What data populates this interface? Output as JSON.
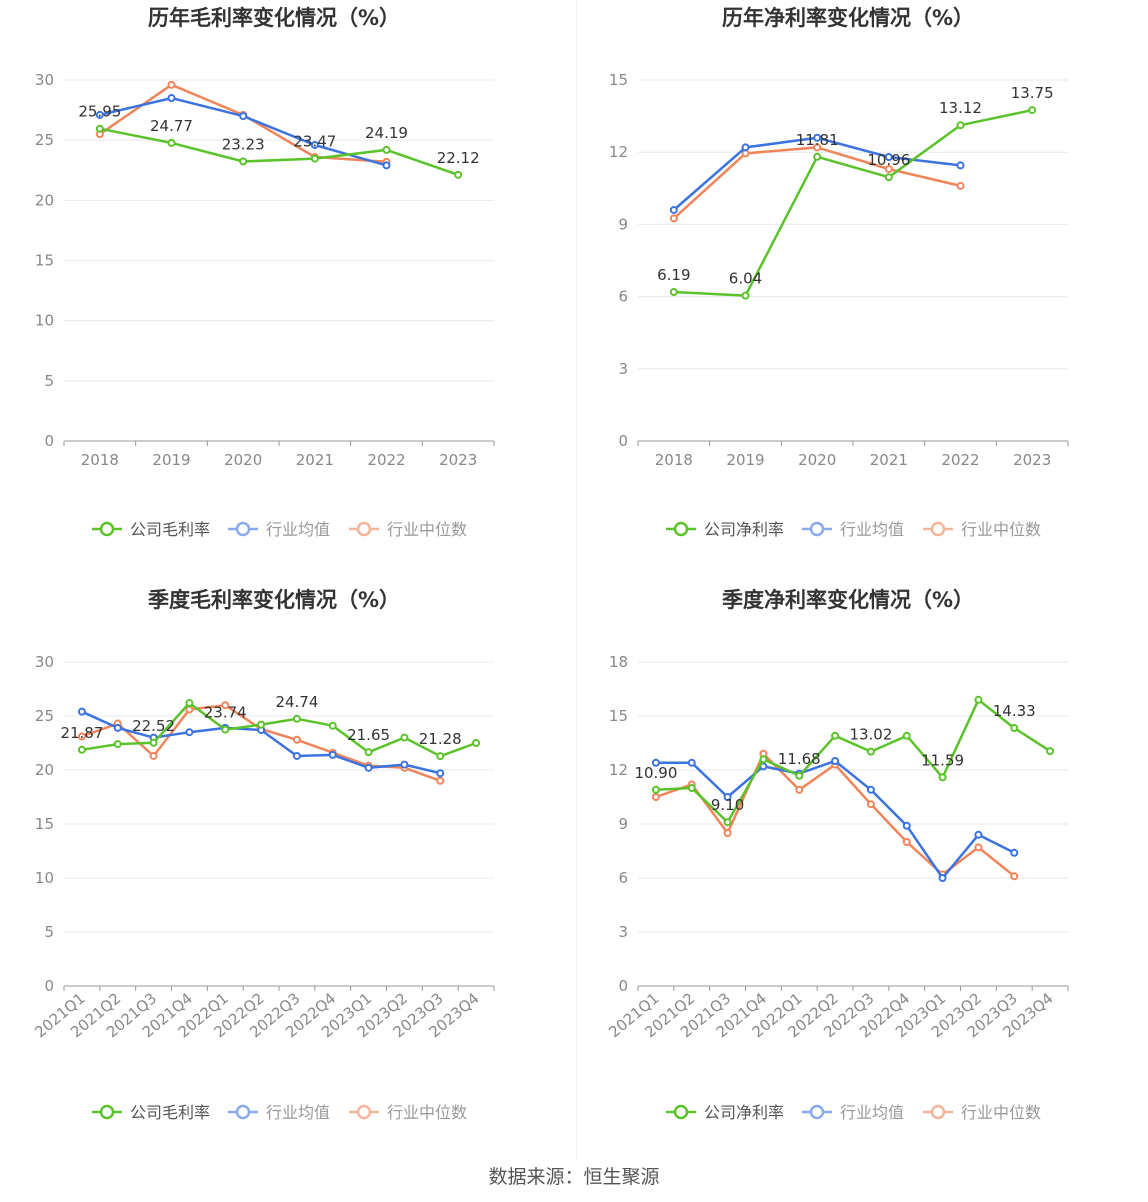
{
  "footer": "数据来源：恒生聚源",
  "colors": {
    "company": "#5ac32a",
    "avg": "#3b73e0",
    "median": "#f0855a",
    "grid": "#e6e9f2",
    "axis": "#999999"
  },
  "chart_data": [
    {
      "type": "line",
      "title": "历年毛利率变化情况（%）",
      "categories": [
        "2018",
        "2019",
        "2020",
        "2021",
        "2022",
        "2023"
      ],
      "ylim": [
        0,
        30
      ],
      "yticks": [
        0,
        5,
        10,
        15,
        20,
        25,
        30
      ],
      "series": [
        {
          "key": "company",
          "name": "公司毛利率",
          "values": [
            25.95,
            24.77,
            23.23,
            23.47,
            24.19,
            22.12
          ],
          "labels": [
            "25.95",
            "24.77",
            "23.23",
            "23.47",
            "24.19",
            "22.12"
          ]
        },
        {
          "key": "avg",
          "name": "行业均值",
          "values": [
            27.1,
            28.5,
            27.0,
            24.6,
            22.9,
            null
          ]
        },
        {
          "key": "median",
          "name": "行业中位数",
          "values": [
            25.5,
            29.6,
            27.1,
            23.6,
            23.2,
            null
          ]
        }
      ]
    },
    {
      "type": "line",
      "title": "历年净利率变化情况（%）",
      "categories": [
        "2018",
        "2019",
        "2020",
        "2021",
        "2022",
        "2023"
      ],
      "ylim": [
        0,
        15
      ],
      "yticks": [
        0,
        3,
        6,
        9,
        12,
        15
      ],
      "series": [
        {
          "key": "company",
          "name": "公司净利率",
          "values": [
            6.19,
            6.04,
            11.81,
            10.96,
            13.12,
            13.75
          ],
          "labels": [
            "6.19",
            "6.04",
            "11.81",
            "10.96",
            "13.12",
            "13.75"
          ]
        },
        {
          "key": "avg",
          "name": "行业均值",
          "values": [
            9.6,
            12.2,
            12.6,
            11.8,
            11.45,
            null
          ]
        },
        {
          "key": "median",
          "name": "行业中位数",
          "values": [
            9.25,
            11.95,
            12.2,
            11.3,
            10.6,
            null
          ]
        }
      ]
    },
    {
      "type": "line",
      "title": "季度毛利率变化情况（%）",
      "categories": [
        "2021Q1",
        "2021Q2",
        "2021Q3",
        "2021Q4",
        "2022Q1",
        "2022Q2",
        "2022Q3",
        "2022Q4",
        "2023Q1",
        "2023Q2",
        "2023Q3",
        "2023Q4"
      ],
      "ylim": [
        0,
        30
      ],
      "yticks": [
        0,
        5,
        10,
        15,
        20,
        25,
        30
      ],
      "rotateX": true,
      "series": [
        {
          "key": "company",
          "name": "公司毛利率",
          "values": [
            21.87,
            22.4,
            22.52,
            26.2,
            23.74,
            24.2,
            24.74,
            24.1,
            21.65,
            23.0,
            21.28,
            22.5
          ],
          "labels": [
            "21.87",
            "",
            "22.52",
            "",
            "23.74",
            "",
            "24.74",
            "",
            "21.65",
            "",
            "21.28",
            ""
          ]
        },
        {
          "key": "avg",
          "name": "行业均值",
          "values": [
            25.4,
            23.9,
            23.0,
            23.5,
            23.9,
            23.7,
            21.3,
            21.4,
            20.2,
            20.5,
            19.7,
            null
          ]
        },
        {
          "key": "median",
          "name": "行业中位数",
          "values": [
            23.1,
            24.3,
            21.3,
            25.6,
            26.0,
            23.8,
            22.8,
            21.6,
            20.4,
            20.2,
            19.0,
            null
          ]
        }
      ]
    },
    {
      "type": "line",
      "title": "季度净利率变化情况（%）",
      "categories": [
        "2021Q1",
        "2021Q2",
        "2021Q3",
        "2021Q4",
        "2022Q1",
        "2022Q2",
        "2022Q3",
        "2022Q4",
        "2023Q1",
        "2023Q2",
        "2023Q3",
        "2023Q4"
      ],
      "ylim": [
        0,
        18
      ],
      "yticks": [
        0,
        3,
        6,
        9,
        12,
        15,
        18
      ],
      "rotateX": true,
      "series": [
        {
          "key": "company",
          "name": "公司净利率",
          "values": [
            10.9,
            11.0,
            9.1,
            12.6,
            11.68,
            13.9,
            13.02,
            13.9,
            11.59,
            15.9,
            14.33,
            13.05
          ],
          "labels": [
            "10.90",
            "",
            "9.10",
            "",
            "11.68",
            "",
            "13.02",
            "",
            "11.59",
            "",
            "14.33",
            ""
          ]
        },
        {
          "key": "avg",
          "name": "行业均值",
          "values": [
            12.4,
            12.4,
            10.5,
            12.2,
            11.8,
            12.5,
            10.9,
            8.9,
            6.0,
            8.4,
            7.4,
            null
          ]
        },
        {
          "key": "median",
          "name": "行业中位数",
          "values": [
            10.5,
            11.2,
            8.5,
            12.9,
            10.9,
            12.3,
            10.1,
            8.0,
            6.2,
            7.7,
            6.1,
            null
          ]
        }
      ]
    }
  ]
}
